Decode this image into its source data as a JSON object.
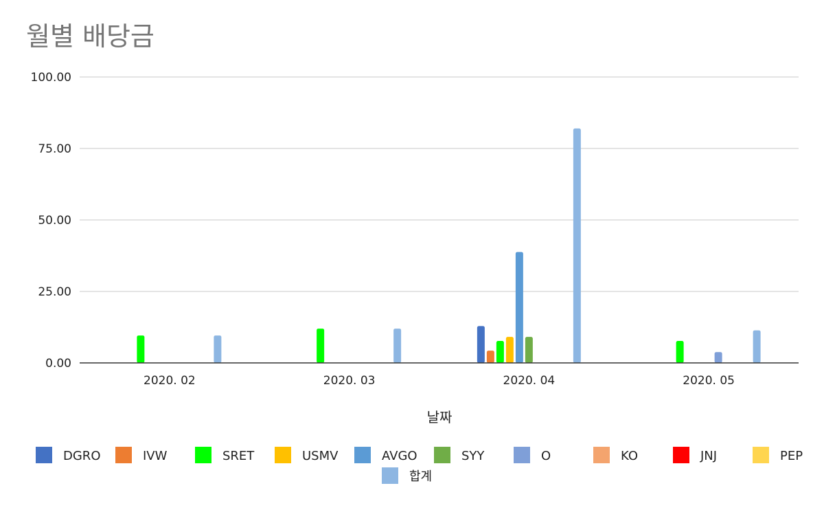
{
  "chart_data": {
    "type": "bar",
    "title": "월별 배당금",
    "xlabel": "날짜",
    "ylabel": "",
    "ylim": [
      0,
      100
    ],
    "yticks": [
      "0.00",
      "25.00",
      "50.00",
      "75.00",
      "100.00"
    ],
    "ytick_values": [
      0,
      25,
      50,
      75,
      100
    ],
    "grid": true,
    "legend_position": "bottom",
    "categories": [
      "2020. 02",
      "2020. 03",
      "2020. 04",
      "2020. 05"
    ],
    "series": [
      {
        "name": "DGRO",
        "color": "#4472c4",
        "values": [
          0,
          0,
          12.9,
          0
        ]
      },
      {
        "name": "IVW",
        "color": "#ed7d31",
        "values": [
          0,
          0,
          4.3,
          0
        ]
      },
      {
        "name": "SRET",
        "color": "#00ff00",
        "values": [
          9.6,
          12.0,
          7.7,
          7.7
        ]
      },
      {
        "name": "USMV",
        "color": "#ffc000",
        "values": [
          0,
          0,
          9.1,
          0
        ]
      },
      {
        "name": "AVGO",
        "color": "#5b9bd5",
        "values": [
          0,
          0,
          38.8,
          0
        ]
      },
      {
        "name": "SYY",
        "color": "#70ad47",
        "values": [
          0,
          0,
          9.1,
          0
        ]
      },
      {
        "name": "O",
        "color": "#7f9fd8",
        "values": [
          0,
          0,
          0,
          3.8
        ]
      },
      {
        "name": "KO",
        "color": "#f4a46e",
        "values": [
          0,
          0,
          0,
          0
        ]
      },
      {
        "name": "JNJ",
        "color": "#ff0000",
        "values": [
          0,
          0,
          0,
          0
        ]
      },
      {
        "name": "PEP",
        "color": "#ffd54f",
        "values": [
          0,
          0,
          0,
          0
        ]
      },
      {
        "name": "합계",
        "color": "#8db6e2",
        "values": [
          9.6,
          12.0,
          82.0,
          11.4
        ]
      }
    ]
  }
}
